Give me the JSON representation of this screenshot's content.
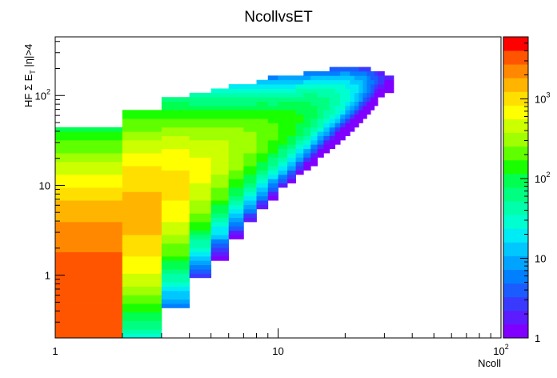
{
  "chart_data": {
    "type": "heatmap",
    "title": "NcollvsET",
    "xlabel": "Ncoll",
    "ylabel": {
      "main": "HF Σ E",
      "sub": "T",
      "tail": " |η|>4"
    },
    "x_scale": "log",
    "y_scale": "log",
    "z_scale": "log",
    "xlim": [
      1,
      100
    ],
    "ylim": [
      0.2,
      450
    ],
    "zlim": [
      1,
      6000
    ],
    "x_ticks": [
      {
        "value": 1,
        "base": "1",
        "exp": ""
      },
      {
        "value": 10,
        "base": "10",
        "exp": ""
      },
      {
        "value": 100,
        "base": "10",
        "exp": "2"
      }
    ],
    "y_ticks": [
      {
        "value": 1,
        "base": "1",
        "exp": ""
      },
      {
        "value": 10,
        "base": "10",
        "exp": ""
      },
      {
        "value": 100,
        "base": "10",
        "exp": "2"
      }
    ],
    "z_ticks": [
      {
        "value": 1,
        "base": "1",
        "exp": ""
      },
      {
        "value": 10,
        "base": "10",
        "exp": ""
      },
      {
        "value": 100,
        "base": "10",
        "exp": "2"
      },
      {
        "value": 1000,
        "base": "10",
        "exp": "3"
      }
    ],
    "colors": [
      "#7f00ff",
      "#5d1bff",
      "#3a3aff",
      "#1b5cff",
      "#0080ff",
      "#00a4ff",
      "#00c8ff",
      "#00ecf4",
      "#00ffd0",
      "#00ffaa",
      "#00ff80",
      "#00ff50",
      "#1aff00",
      "#60ff00",
      "#a0ff00",
      "#ccff00",
      "#ffff00",
      "#ffdf00",
      "#ffb400",
      "#ff8800",
      "#ff5500",
      "#ff0000"
    ],
    "bins": [
      {
        "x0": 1,
        "x1": 2,
        "y_center": 1,
        "peak": 3000,
        "width": 0.62,
        "ymin": 0.2,
        "ymax": 45
      },
      {
        "x0": 2,
        "x1": 3,
        "y_center": 5,
        "peak": 1400,
        "width": 0.5,
        "ymin": 0.2,
        "ymax": 70
      },
      {
        "x0": 3,
        "x1": 4,
        "y_center": 10,
        "peak": 900,
        "width": 0.42,
        "ymin": 0.45,
        "ymax": 95
      },
      {
        "x0": 4,
        "x1": 5,
        "y_center": 15,
        "peak": 600,
        "width": 0.36,
        "ymin": 0.9,
        "ymax": 110
      },
      {
        "x0": 5,
        "x1": 6,
        "y_center": 20,
        "peak": 450,
        "width": 0.32,
        "ymin": 1.5,
        "ymax": 120
      },
      {
        "x0": 6,
        "x1": 7,
        "y_center": 25,
        "peak": 350,
        "width": 0.29,
        "ymin": 2.5,
        "ymax": 130
      },
      {
        "x0": 7,
        "x1": 8,
        "y_center": 30,
        "peak": 280,
        "width": 0.27,
        "ymin": 4,
        "ymax": 140
      },
      {
        "x0": 8,
        "x1": 9,
        "y_center": 35,
        "peak": 230,
        "width": 0.25,
        "ymin": 5.5,
        "ymax": 150
      },
      {
        "x0": 9,
        "x1": 10,
        "y_center": 40,
        "peak": 190,
        "width": 0.23,
        "ymin": 7,
        "ymax": 160
      },
      {
        "x0": 10,
        "x1": 11,
        "y_center": 45,
        "peak": 160,
        "width": 0.22,
        "ymin": 9,
        "ymax": 165
      },
      {
        "x0": 11,
        "x1": 12,
        "y_center": 50,
        "peak": 140,
        "width": 0.21,
        "ymin": 11,
        "ymax": 170
      },
      {
        "x0": 12,
        "x1": 13,
        "y_center": 56,
        "peak": 120,
        "width": 0.2,
        "ymin": 13,
        "ymax": 175
      },
      {
        "x0": 13,
        "x1": 14,
        "y_center": 62,
        "peak": 100,
        "width": 0.19,
        "ymin": 15,
        "ymax": 180
      },
      {
        "x0": 14,
        "x1": 15,
        "y_center": 68,
        "peak": 85,
        "width": 0.18,
        "ymin": 17,
        "ymax": 185
      },
      {
        "x0": 15,
        "x1": 16,
        "y_center": 74,
        "peak": 70,
        "width": 0.17,
        "ymin": 20,
        "ymax": 190
      },
      {
        "x0": 16,
        "x1": 17,
        "y_center": 80,
        "peak": 60,
        "width": 0.16,
        "ymin": 23,
        "ymax": 195
      },
      {
        "x0": 17,
        "x1": 18,
        "y_center": 86,
        "peak": 50,
        "width": 0.155,
        "ymin": 26,
        "ymax": 200
      },
      {
        "x0": 18,
        "x1": 19,
        "y_center": 92,
        "peak": 42,
        "width": 0.15,
        "ymin": 29,
        "ymax": 200
      },
      {
        "x0": 19,
        "x1": 20,
        "y_center": 98,
        "peak": 35,
        "width": 0.145,
        "ymin": 32,
        "ymax": 205
      },
      {
        "x0": 20,
        "x1": 21,
        "y_center": 104,
        "peak": 28,
        "width": 0.14,
        "ymin": 36,
        "ymax": 205
      },
      {
        "x0": 21,
        "x1": 22,
        "y_center": 110,
        "peak": 22,
        "width": 0.135,
        "ymin": 40,
        "ymax": 210
      },
      {
        "x0": 22,
        "x1": 23,
        "y_center": 116,
        "peak": 17,
        "width": 0.13,
        "ymin": 45,
        "ymax": 210
      },
      {
        "x0": 23,
        "x1": 24,
        "y_center": 122,
        "peak": 13,
        "width": 0.125,
        "ymin": 50,
        "ymax": 210
      },
      {
        "x0": 24,
        "x1": 25,
        "y_center": 128,
        "peak": 10,
        "width": 0.12,
        "ymin": 55,
        "ymax": 205
      },
      {
        "x0": 25,
        "x1": 26,
        "y_center": 134,
        "peak": 7,
        "width": 0.115,
        "ymin": 60,
        "ymax": 200
      },
      {
        "x0": 26,
        "x1": 27,
        "y_center": 140,
        "peak": 5,
        "width": 0.11,
        "ymin": 70,
        "ymax": 195
      },
      {
        "x0": 27,
        "x1": 28,
        "y_center": 146,
        "peak": 3.5,
        "width": 0.105,
        "ymin": 80,
        "ymax": 190
      },
      {
        "x0": 28,
        "x1": 30,
        "y_center": 150,
        "peak": 2.5,
        "width": 0.1,
        "ymin": 95,
        "ymax": 185
      },
      {
        "x0": 30,
        "x1": 33,
        "y_center": 155,
        "peak": 1.6,
        "width": 0.09,
        "ymin": 110,
        "ymax": 175
      }
    ]
  }
}
